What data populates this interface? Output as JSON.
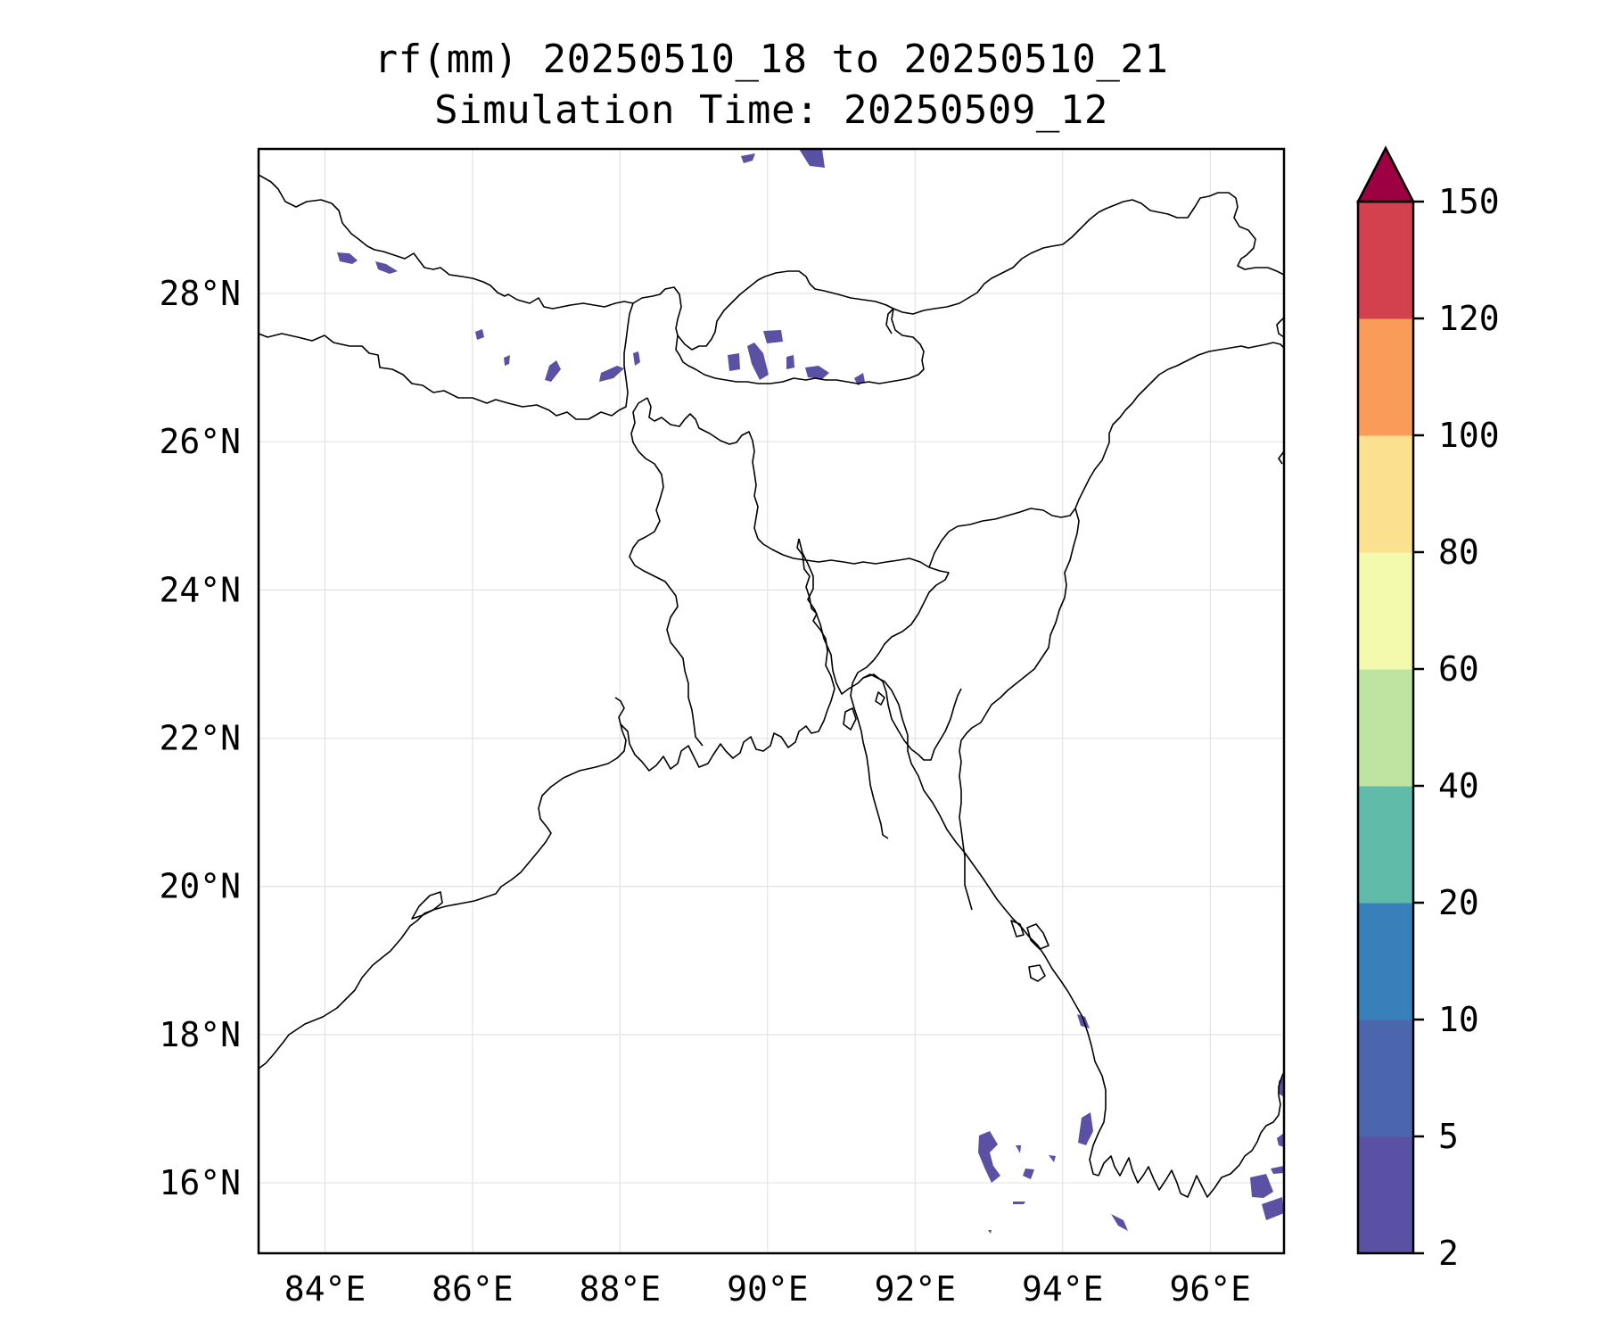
{
  "title": {
    "line1": "rf(mm) 20250510_18 to 20250510_21",
    "line2": "Simulation Time: 20250509_12"
  },
  "map": {
    "lon_range": [
      83.1,
      97.0
    ],
    "lat_range": [
      15.05,
      29.95
    ],
    "lon_ticks": [
      {
        "value": 84,
        "label": "84°E"
      },
      {
        "value": 86,
        "label": "86°E"
      },
      {
        "value": 88,
        "label": "88°E"
      },
      {
        "value": 90,
        "label": "90°E"
      },
      {
        "value": 92,
        "label": "92°E"
      },
      {
        "value": 94,
        "label": "94°E"
      },
      {
        "value": 96,
        "label": "96°E"
      }
    ],
    "lat_ticks": [
      {
        "value": 16,
        "label": "16°N"
      },
      {
        "value": 18,
        "label": "18°N"
      },
      {
        "value": 20,
        "label": "20°N"
      },
      {
        "value": 22,
        "label": "22°N"
      },
      {
        "value": 24,
        "label": "24°N"
      },
      {
        "value": 26,
        "label": "26°N"
      },
      {
        "value": 28,
        "label": "28°N"
      }
    ],
    "gridlines": true,
    "rainfall_areas_band": "2-5"
  },
  "colorbar": {
    "levels": [
      "2",
      "5",
      "10",
      "20",
      "40",
      "60",
      "80",
      "100",
      "120",
      "150"
    ],
    "colors": [
      "#5a51a4",
      "#4c66ad",
      "#3880b9",
      "#61bba9",
      "#bde4a0",
      "#f4faad",
      "#fbe08f",
      "#f99c5a",
      "#d4414e"
    ],
    "extend_color": "#9e0142",
    "extend": "max"
  }
}
